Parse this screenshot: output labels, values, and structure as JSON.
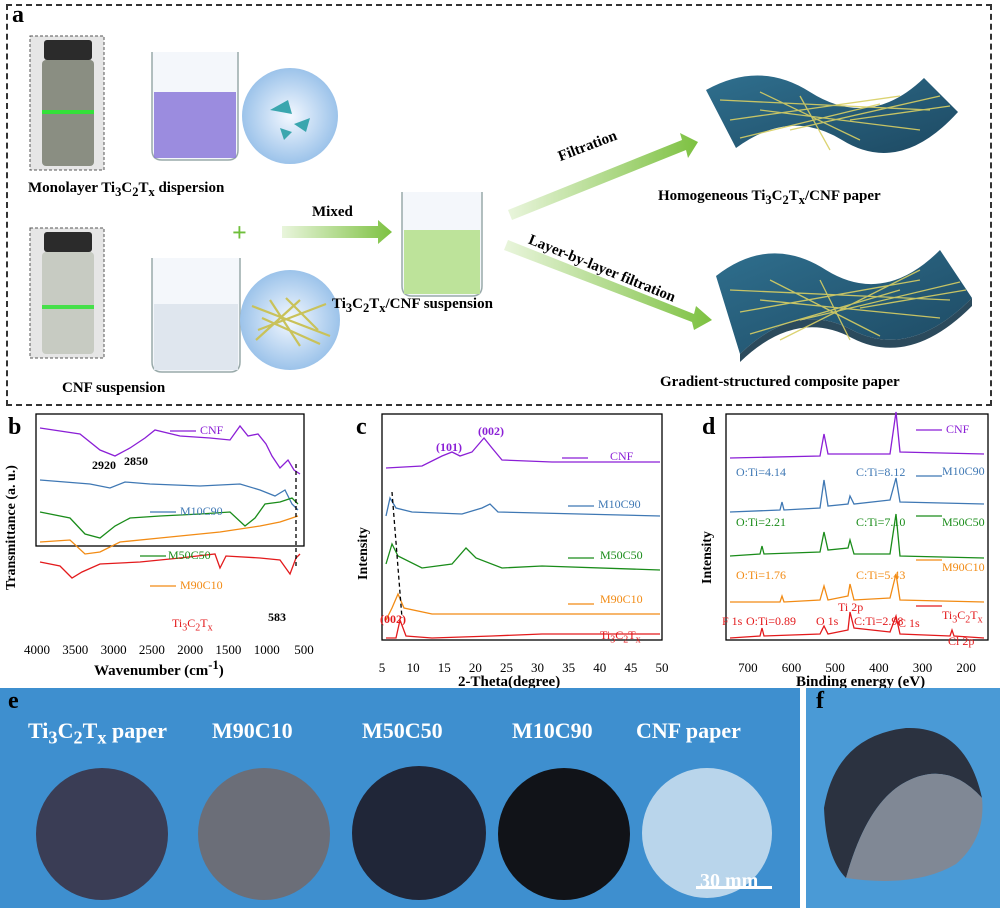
{
  "panel_a": {
    "label": "a",
    "monolayer_caption": "Monolayer Ti3C2Tx dispersion",
    "cnf_caption": "CNF suspension",
    "mixed_label": "Mixed",
    "suspension_caption": "Ti3C2Tx/CNF suspension",
    "filtration_label": "Filtration",
    "lbl_filtration_label": "Layer-by-layer filtration",
    "homogeneous_caption": "Homogeneous Ti3C2Tx/CNF paper",
    "gradient_caption": "Gradient-structured composite paper",
    "plus": "+"
  },
  "chart_data": [
    {
      "panel": "b",
      "type": "line",
      "xlabel": "Wavenumber (cm-1)",
      "ylabel": "Transmittance (a. u.)",
      "xlim": [
        4000,
        500
      ],
      "xticks": [
        "4000",
        "3500",
        "3000",
        "2500",
        "2000",
        "1500",
        "1000",
        "500"
      ],
      "series": [
        {
          "name": "CNF",
          "color": "#8b1fd6"
        },
        {
          "name": "M10C90",
          "color": "#3f78b4"
        },
        {
          "name": "M50C50",
          "color": "#1a8c1a"
        },
        {
          "name": "M90C10",
          "color": "#f28b14"
        },
        {
          "name": "Ti3C2Tx",
          "color": "#e31a1c"
        }
      ],
      "annotations": [
        "2920",
        "2850",
        "583"
      ]
    },
    {
      "panel": "c",
      "type": "line",
      "xlabel": "2-Theta(degree)",
      "ylabel": "Intensity",
      "xlim": [
        5,
        50
      ],
      "xticks": [
        "5",
        "10",
        "15",
        "20",
        "25",
        "30",
        "35",
        "40",
        "45",
        "50"
      ],
      "series": [
        {
          "name": "CNF",
          "color": "#8b1fd6"
        },
        {
          "name": "M10C90",
          "color": "#3f78b4"
        },
        {
          "name": "M50C50",
          "color": "#1a8c1a"
        },
        {
          "name": "M90C10",
          "color": "#f28b14"
        },
        {
          "name": "Ti3C2Tx",
          "color": "#e31a1c"
        }
      ],
      "annotations": [
        "(101)",
        "(002)",
        "(002)"
      ]
    },
    {
      "panel": "d",
      "type": "line",
      "xlabel": "Binding energy (eV)",
      "ylabel": "Intensity",
      "xlim": [
        750,
        150
      ],
      "xticks": [
        "700",
        "600",
        "500",
        "400",
        "300",
        "200"
      ],
      "series": [
        {
          "name": "CNF",
          "color": "#8b1fd6"
        },
        {
          "name": "M10C90",
          "color": "#3f78b4",
          "ratios": [
            "O:Ti=4.14",
            "C:Ti=8.12"
          ]
        },
        {
          "name": "M50C50",
          "color": "#1a8c1a",
          "ratios": [
            "O:Ti=2.21",
            "C:Ti=7.10"
          ]
        },
        {
          "name": "M90C10",
          "color": "#f28b14",
          "ratios": [
            "O:Ti=1.76",
            "C:Ti=5.43"
          ]
        },
        {
          "name": "Ti3C2Tx",
          "color": "#e31a1c",
          "ratios": [
            "O:Ti=0.89",
            "C:Ti=2.98"
          ]
        }
      ],
      "peaks": [
        "F 1s",
        "O 1s",
        "Ti 2p",
        "C 1s",
        "Cl 2p"
      ]
    }
  ],
  "panel_e": {
    "label": "e",
    "samples": [
      "Ti3C2Tx paper",
      "M90C10",
      "M50C50",
      "M10C90",
      "CNF paper"
    ],
    "scale_bar": "30 mm"
  },
  "panel_f": {
    "label": "f"
  }
}
